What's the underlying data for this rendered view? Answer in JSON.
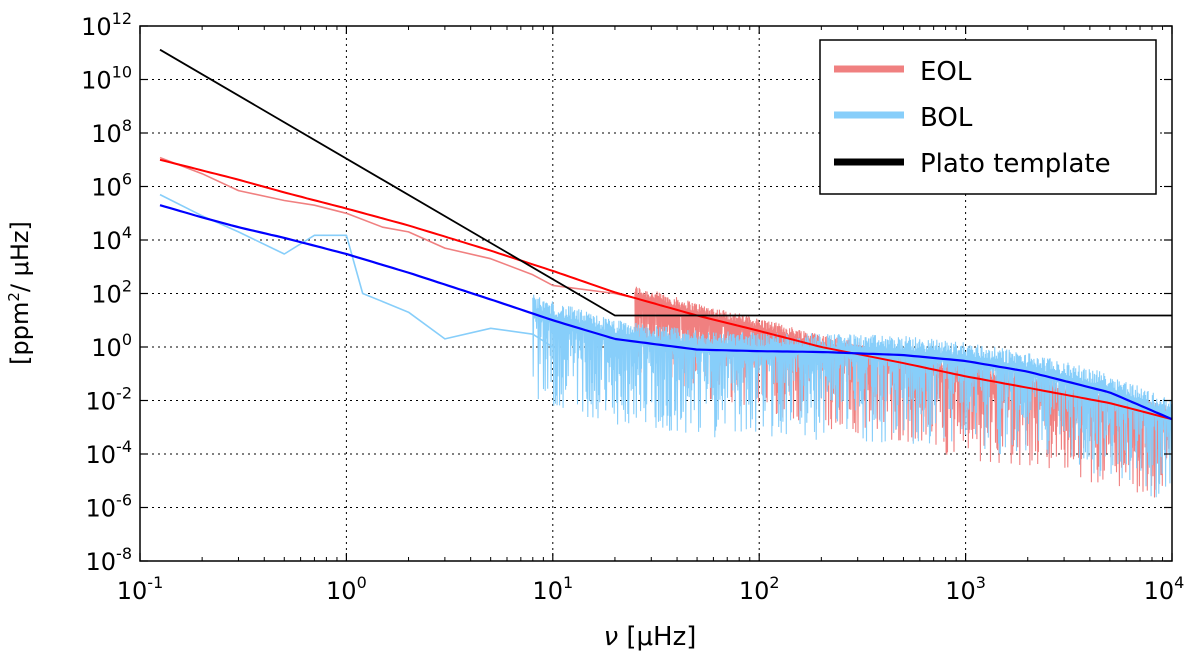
{
  "chart_data": {
    "type": "line",
    "scale": "log-log",
    "xlabel_prefix": "ν",
    "xlabel_unit": " [μHz]",
    "ylabel_main": "[ppm",
    "ylabel_sup": "2",
    "ylabel_tail": "/ μHz]",
    "xlim": [
      0.1,
      10000
    ],
    "ylim": [
      1e-08,
      1000000000000.0
    ],
    "grid": true,
    "x_ticks": [
      {
        "value": 0.1,
        "base": "10",
        "exp": "-1"
      },
      {
        "value": 1,
        "base": "10",
        "exp": "0"
      },
      {
        "value": 10,
        "base": "10",
        "exp": "1"
      },
      {
        "value": 100,
        "base": "10",
        "exp": "2"
      },
      {
        "value": 1000,
        "base": "10",
        "exp": "3"
      },
      {
        "value": 10000,
        "base": "10",
        "exp": "4"
      }
    ],
    "y_ticks": [
      {
        "value": 1e-08,
        "base": "10",
        "exp": "-8"
      },
      {
        "value": 1e-06,
        "base": "10",
        "exp": "-6"
      },
      {
        "value": 0.0001,
        "base": "10",
        "exp": "-4"
      },
      {
        "value": 0.01,
        "base": "10",
        "exp": "-2"
      },
      {
        "value": 1,
        "base": "10",
        "exp": "0"
      },
      {
        "value": 100,
        "base": "10",
        "exp": "2"
      },
      {
        "value": 10000.0,
        "base": "10",
        "exp": "4"
      },
      {
        "value": 1000000.0,
        "base": "10",
        "exp": "6"
      },
      {
        "value": 100000000.0,
        "base": "10",
        "exp": "8"
      },
      {
        "value": 10000000000.0,
        "base": "10",
        "exp": "10"
      },
      {
        "value": 1000000000000.0,
        "base": "10",
        "exp": "12"
      }
    ],
    "legend": {
      "position": "top-right",
      "entries": [
        {
          "label": "EOL",
          "color": "#f08080"
        },
        {
          "label": "BOL",
          "color": "#87cefa"
        },
        {
          "label": "Plato template",
          "color": "#000000"
        }
      ]
    },
    "series": [
      {
        "name": "Plato template",
        "color": "#000000",
        "x": [
          0.125,
          20,
          10000
        ],
        "y": [
          130000000000.0,
          15,
          15
        ]
      },
      {
        "name": "EOL fit",
        "color": "#ff0000",
        "x": [
          0.125,
          0.2,
          0.3,
          0.5,
          1,
          2,
          5,
          10,
          20,
          50,
          100,
          200,
          500,
          1000,
          2000,
          5000,
          10000
        ],
        "y": [
          10000000.0,
          4000000.0,
          1800000.0,
          600000.0,
          150000.0,
          35000.0,
          4000,
          700,
          110,
          15,
          4,
          1,
          0.25,
          0.08,
          0.03,
          0.008,
          0.002
        ]
      },
      {
        "name": "BOL fit",
        "color": "#0000ff",
        "x": [
          0.125,
          0.2,
          0.3,
          0.5,
          1,
          2,
          5,
          10,
          20,
          50,
          100,
          200,
          500,
          1000,
          2000,
          5000,
          10000
        ],
        "y": [
          200000.0,
          70000.0,
          30000.0,
          12000.0,
          3000,
          600,
          60,
          10,
          2,
          0.8,
          0.7,
          0.65,
          0.5,
          0.3,
          0.12,
          0.02,
          0.002
        ]
      },
      {
        "name": "EOL",
        "color": "#f08080",
        "x": [
          0.125,
          0.2,
          0.3,
          0.5,
          0.7,
          1,
          1.5,
          2,
          3,
          5,
          8,
          10,
          20,
          40
        ],
        "y": [
          12000000.0,
          3000000.0,
          700000.0,
          300000.0,
          200000.0,
          100000.0,
          30000.0,
          20000.0,
          5000.0,
          2000.0,
          500,
          200,
          100,
          30
        ]
      },
      {
        "name": "BOL",
        "color": "#87cefa",
        "x": [
          0.125,
          0.2,
          0.3,
          0.5,
          0.7,
          1,
          1.2,
          1.5,
          2,
          3,
          5,
          8,
          10
        ],
        "y": [
          500000.0,
          80000.0,
          20000.0,
          3000.0,
          15000.0,
          15000.0,
          100,
          50,
          20,
          2,
          5,
          3,
          1
        ]
      }
    ]
  }
}
